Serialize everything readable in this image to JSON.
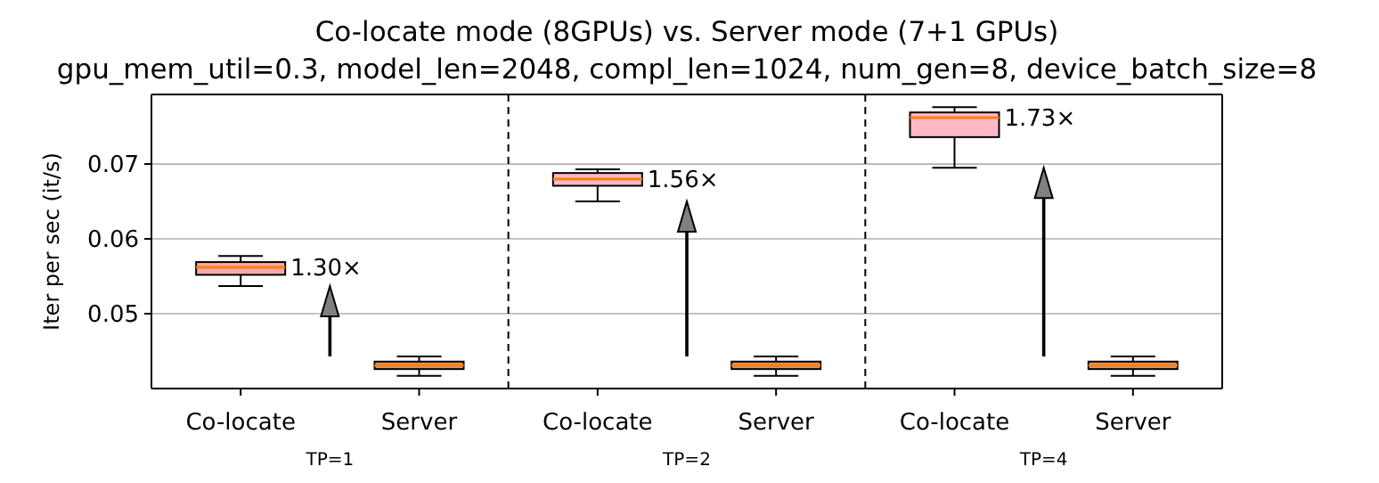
{
  "chart_data": [
    {
      "type": "box",
      "title": "Co-locate mode (8GPUs) vs. Server mode (7+1 GPUs)",
      "subtitle": "gpu_mem_util=0.3, model_len=2048, compl_len=1024, num_gen=8, device_batch_size=8",
      "xlabel": "TP=1",
      "ylabel": "Iter per sec (it/s)",
      "categories": [
        "Co-locate",
        "Server"
      ],
      "ylim": [
        0.04,
        0.0793
      ],
      "yticks": [
        0.05,
        0.06,
        0.07
      ],
      "grid": "y",
      "colors": [
        "#f7aaa8",
        "#d2946a"
      ],
      "boxes": [
        {
          "low": 0.0537,
          "q1": 0.0552,
          "median": 0.0562,
          "q3": 0.0569,
          "high": 0.0577
        },
        {
          "low": 0.0417,
          "q1": 0.0426,
          "median": 0.0431,
          "q3": 0.0436,
          "high": 0.0443
        }
      ],
      "annotations": [
        {
          "text": "1.30×",
          "x": "Co-locate",
          "y": 0.0562
        }
      ]
    },
    {
      "type": "box",
      "xlabel": "TP=2",
      "categories": [
        "Co-locate",
        "Server"
      ],
      "ylim": [
        0.04,
        0.0793
      ],
      "yticks": [
        0.05,
        0.06,
        0.07
      ],
      "grid": "y",
      "tick_labels": "x",
      "colors": [
        "#ffb9c4",
        "#d2946a"
      ],
      "boxes": [
        {
          "low": 0.065,
          "q1": 0.0671,
          "median": 0.068,
          "q3": 0.0688,
          "high": 0.0693
        },
        {
          "low": 0.0417,
          "q1": 0.0426,
          "median": 0.0431,
          "q3": 0.0436,
          "high": 0.0443
        }
      ],
      "annotations": [
        {
          "text": "1.56×",
          "x": "Co-locate",
          "y": 0.068
        }
      ]
    },
    {
      "type": "box",
      "xlabel": "TP=4",
      "categories": [
        "Co-locate",
        "Server"
      ],
      "ylim": [
        0.04,
        0.0793
      ],
      "yticks": [
        0.05,
        0.06,
        0.07
      ],
      "grid": "y",
      "tick_labels": "x",
      "colors": [
        "#ffb9c4",
        "#d2946a"
      ],
      "boxes": [
        {
          "low": 0.0695,
          "q1": 0.0736,
          "median": 0.0762,
          "q3": 0.0769,
          "high": 0.0776
        },
        {
          "low": 0.0417,
          "q1": 0.0426,
          "median": 0.0431,
          "q3": 0.0436,
          "high": 0.0443
        }
      ],
      "annotations": [
        {
          "text": "1.73×",
          "x": "Co-locate",
          "y": 0.0762
        }
      ]
    }
  ]
}
